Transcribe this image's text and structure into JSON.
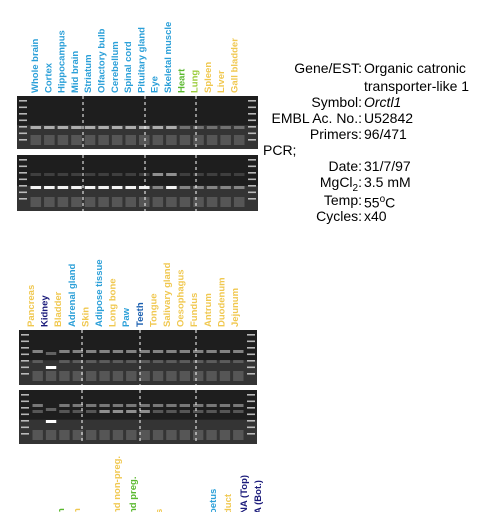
{
  "panel_top": {
    "lanes": [
      {
        "text": "Whole brain",
        "color": "#2a9fd8"
      },
      {
        "text": "Cortex",
        "color": "#2a9fd8"
      },
      {
        "text": "Hippocampus",
        "color": "#2a9fd8"
      },
      {
        "text": "Mid brain",
        "color": "#2a9fd8"
      },
      {
        "text": "Striatum",
        "color": "#2a9fd8"
      },
      {
        "text": "Olfactory bulb",
        "color": "#2a9fd8"
      },
      {
        "text": "Cerebellum",
        "color": "#2a9fd8"
      },
      {
        "text": "Spinal cord",
        "color": "#2a9fd8"
      },
      {
        "text": "Pituitary gland",
        "color": "#2a9fd8"
      },
      {
        "text": "Eye",
        "color": "#2a9fd8"
      },
      {
        "text": "Skeletal muscle",
        "color": "#2a9fd8"
      },
      {
        "text": "Heart",
        "color": "#5ab82e"
      },
      {
        "text": "Lung",
        "color": "#9ccc3c"
      },
      {
        "text": "Spleen",
        "color": "#f0c850"
      },
      {
        "text": "Liver",
        "color": "#f0c850"
      },
      {
        "text": "Gall bladder",
        "color": "#f0c850"
      }
    ]
  },
  "panel_middle": {
    "lanes": [
      {
        "text": "Pancreas",
        "color": "#f0c850"
      },
      {
        "text": "Kidney",
        "color": "#1a1a7a"
      },
      {
        "text": "Bladder",
        "color": "#f0c850"
      },
      {
        "text": "Adrenal gland",
        "color": "#2a9fd8"
      },
      {
        "text": "Skin",
        "color": "#f0c850"
      },
      {
        "text": "Adipose tissue",
        "color": "#2a9fd8"
      },
      {
        "text": "Long bone",
        "color": "#f0c850"
      },
      {
        "text": "Paw",
        "color": "#2a9fd8"
      },
      {
        "text": "Teeth",
        "color": "#1a5fb0"
      },
      {
        "text": "Tongue",
        "color": "#f0c850"
      },
      {
        "text": "Salivary gland",
        "color": "#f0c850"
      },
      {
        "text": "Oesophagus",
        "color": "#f0c850"
      },
      {
        "text": "Fundus",
        "color": "#f0c850"
      },
      {
        "text": "Antrum",
        "color": "#f0c850"
      },
      {
        "text": "Duodenum",
        "color": "#f0c850"
      },
      {
        "text": "Jejunum",
        "color": "#f0c850"
      }
    ]
  },
  "panel_bottom": {
    "lanes": [
      {
        "text": "n",
        "color": "#5ab82e"
      },
      {
        "text": "n",
        "color": "#f0c850"
      },
      {
        "text": "nd non-preg.",
        "color": "#f0c850"
      },
      {
        "text": "nd preg.",
        "color": "#5ab82e"
      },
      {
        "text": "s",
        "color": "#f0c850"
      },
      {
        "text": "oetus",
        "color": "#2a9fd8"
      },
      {
        "text": "duct",
        "color": "#f0c850"
      },
      {
        "text": "NA (Top)",
        "color": "#1a1a7a"
      },
      {
        "text": "A (Bot.)",
        "color": "#1a1a7a"
      }
    ]
  },
  "info": {
    "gene_label": "Gene/EST:",
    "gene_value_line1": "Organic catronic",
    "gene_value_line2": "transporter-like 1",
    "symbol_label": "Symbol:",
    "symbol_value": "Orctl1",
    "embl_label": "EMBL Ac. No.:",
    "embl_value": "U52842",
    "primers_label": "Primers:",
    "primers_value": "96/471",
    "pcr_label": "PCR;",
    "date_label": "Date:",
    "date_value": "31/7/97",
    "mgcl_label": "MgCl",
    "mgcl_label_sub": "2",
    "mgcl_label_end": ":",
    "mgcl_value": "3.5 mM",
    "temp_label": "Temp:",
    "temp_value": "55",
    "temp_value_sup": "o",
    "temp_value_end": "C",
    "cycles_label": "Cycles:",
    "cycles_value": "x40"
  }
}
